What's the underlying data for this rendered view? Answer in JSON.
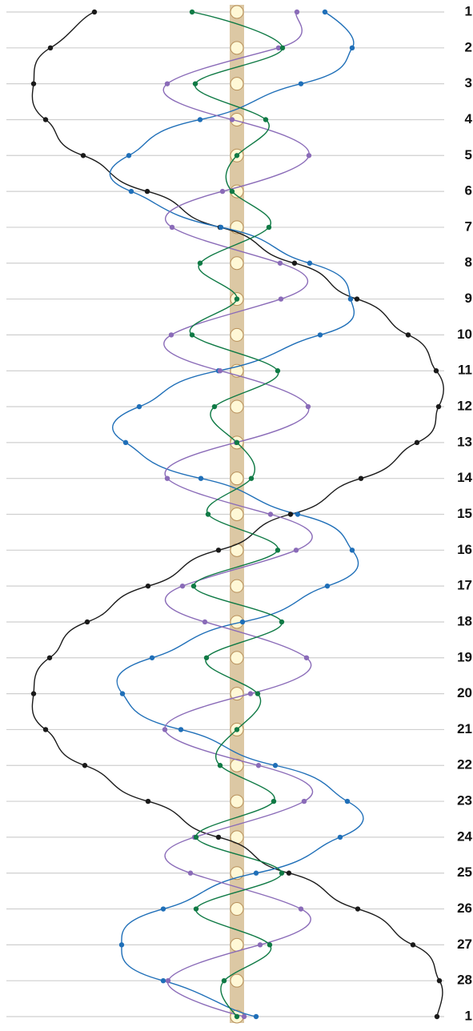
{
  "chart_data": {
    "type": "line",
    "categories": [
      "1",
      "2",
      "3",
      "4",
      "5",
      "6",
      "7",
      "8",
      "9",
      "10",
      "11",
      "12",
      "13",
      "14",
      "15",
      "16",
      "17",
      "18",
      "19",
      "20",
      "21",
      "22",
      "23",
      "24",
      "25",
      "26",
      "27",
      "28",
      "1"
    ],
    "xlim": [
      -29.6,
      29.5
    ],
    "grid": true,
    "series": [
      {
        "color": "#1a1a1a",
        "values": [
          -17.8,
          -23.3,
          -25.4,
          -23.9,
          -19.2,
          -11.2,
          -2.1,
          7.2,
          15,
          21.4,
          24.9,
          25.2,
          22.5,
          15.5,
          6.7,
          -2.3,
          -11.1,
          -18.7,
          -23.4,
          -25.4,
          -23.9,
          -19,
          -11.1,
          -2.3,
          6.5,
          15.1,
          22,
          25.3,
          25
        ]
      },
      {
        "color": "#1f6fb8",
        "values": [
          11,
          14.4,
          8,
          -4.6,
          -13.5,
          -13.2,
          -2,
          9.1,
          14.2,
          10.4,
          -2.3,
          -12.2,
          -13.9,
          -4.5,
          7.6,
          14.4,
          11.3,
          0.7,
          -10.6,
          -14.3,
          -7,
          4.8,
          13.8,
          12.9,
          2.4,
          -9.2,
          -14.4,
          -9.2,
          2.4
        ]
      },
      {
        "color": "#8a6bb8",
        "values": [
          7.5,
          5.2,
          -8.7,
          -0.6,
          9,
          -1.8,
          -8.1,
          5.4,
          5.5,
          -8.2,
          -2.1,
          8.9,
          -0.1,
          -8.7,
          4.2,
          7.4,
          -6.8,
          -4,
          8.7,
          1.7,
          -9,
          2.7,
          8.4,
          -5.3,
          -5.8,
          8,
          2.9,
          -8.6,
          0.9
        ]
      },
      {
        "color": "#0f7a45",
        "values": [
          -5.6,
          5.7,
          -5.2,
          3.6,
          0,
          -0.6,
          4,
          -4.6,
          0,
          -5.6,
          5.1,
          -2.8,
          0,
          1.8,
          -3.6,
          5.1,
          -5.4,
          5.6,
          -3.8,
          2.6,
          0,
          -2.1,
          4.6,
          -5.1,
          5.6,
          -5.1,
          4.1,
          -1.6,
          0
        ]
      }
    ]
  }
}
